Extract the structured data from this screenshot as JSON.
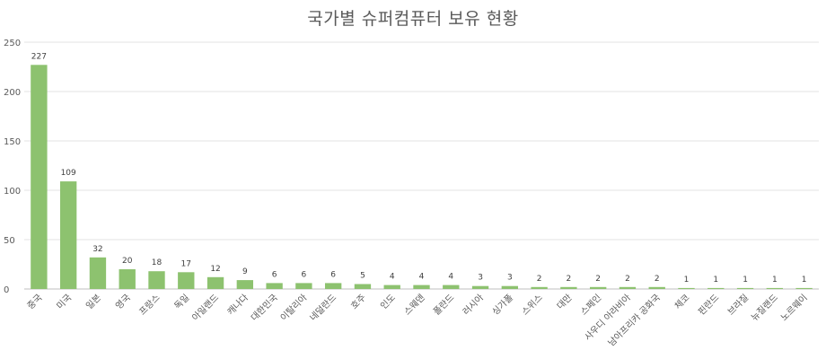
{
  "chart_data": {
    "type": "bar",
    "title": "국가별 슈퍼컴퓨터 보유 현황",
    "xlabel": "",
    "ylabel": "",
    "ylim": [
      0,
      250
    ],
    "yticks": [
      0,
      50,
      100,
      150,
      200,
      250
    ],
    "grid": true,
    "legend": "none",
    "bar_color": "#8dc26f",
    "categories": [
      "중국",
      "미국",
      "일본",
      "영국",
      "프랑스",
      "독일",
      "아일랜드",
      "캐나다",
      "대한민국",
      "이탈리아",
      "네덜란드",
      "호주",
      "인도",
      "스웨덴",
      "폴란드",
      "러시아",
      "싱가폴",
      "스위스",
      "대만",
      "스페인",
      "사우디 아라비아",
      "남아프리카 공화국",
      "체코",
      "핀란드",
      "브라질",
      "뉴질랜드",
      "노르웨이"
    ],
    "values": [
      227,
      109,
      32,
      20,
      18,
      17,
      12,
      9,
      6,
      6,
      6,
      5,
      4,
      4,
      4,
      3,
      3,
      2,
      2,
      2,
      2,
      2,
      1,
      1,
      1,
      1,
      1
    ]
  }
}
